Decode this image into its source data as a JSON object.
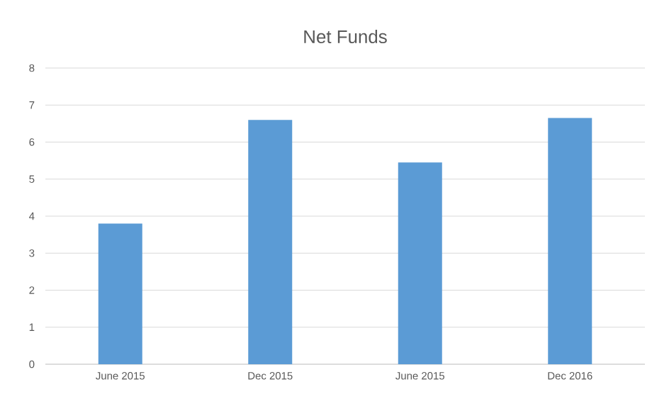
{
  "chart_data": {
    "type": "bar",
    "title": "Net Funds",
    "categories": [
      "June 2015",
      "Dec 2015",
      "June 2015",
      "Dec 2016"
    ],
    "values": [
      3.8,
      6.6,
      5.45,
      6.65
    ],
    "color": "#5b9bd5",
    "ylim": [
      0,
      8
    ],
    "yticks": [
      0,
      1,
      2,
      3,
      4,
      5,
      6,
      7,
      8
    ],
    "grid": "y"
  }
}
